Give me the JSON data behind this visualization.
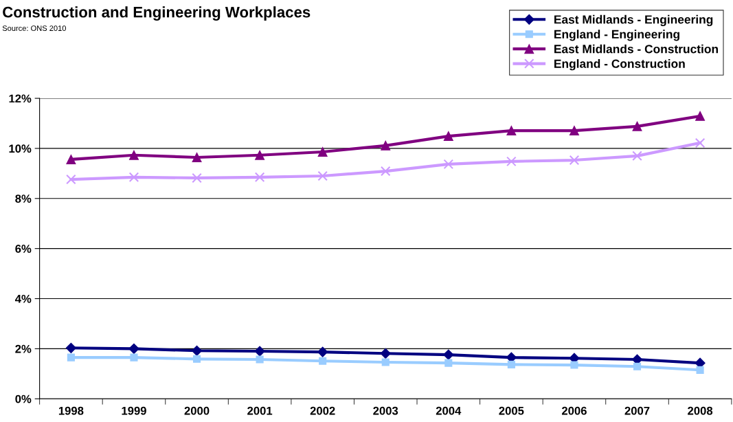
{
  "chart_data": {
    "type": "line",
    "title": "Construction and Engineering Workplaces",
    "annotations": [
      "Source: ONS 2010"
    ],
    "categories": [
      "1998",
      "1999",
      "2000",
      "2001",
      "2002",
      "2003",
      "2004",
      "2005",
      "2006",
      "2007",
      "2008"
    ],
    "series": [
      {
        "name": "East Midlands - Engineering",
        "color": "#000080",
        "marker": "diamond",
        "values": [
          2.03,
          2.0,
          1.92,
          1.9,
          1.87,
          1.81,
          1.76,
          1.65,
          1.62,
          1.57,
          1.43
        ]
      },
      {
        "name": "England - Engineering",
        "color": "#99ccff",
        "marker": "square",
        "values": [
          1.65,
          1.65,
          1.59,
          1.57,
          1.51,
          1.46,
          1.43,
          1.37,
          1.35,
          1.29,
          1.15
        ]
      },
      {
        "name": "East Midlands - Construction",
        "color": "#800080",
        "marker": "triangle",
        "values": [
          9.56,
          9.73,
          9.64,
          9.73,
          9.86,
          10.11,
          10.49,
          10.71,
          10.71,
          10.88,
          11.29
        ]
      },
      {
        "name": "England - Construction",
        "color": "#cc99ff",
        "marker": "cross",
        "values": [
          8.76,
          8.85,
          8.82,
          8.85,
          8.9,
          9.09,
          9.37,
          9.48,
          9.53,
          9.7,
          10.22
        ]
      }
    ],
    "ylim": [
      0,
      12
    ],
    "yticks": [
      {
        "value": 0,
        "label": "0%"
      },
      {
        "value": 2,
        "label": "2%"
      },
      {
        "value": 4,
        "label": "4%"
      },
      {
        "value": 6,
        "label": "6%"
      },
      {
        "value": 8,
        "label": "8%"
      },
      {
        "value": 10,
        "label": "10%"
      },
      {
        "value": 12,
        "label": "12%"
      }
    ],
    "grid": "y",
    "legend": "top right",
    "line_style": "solid"
  }
}
